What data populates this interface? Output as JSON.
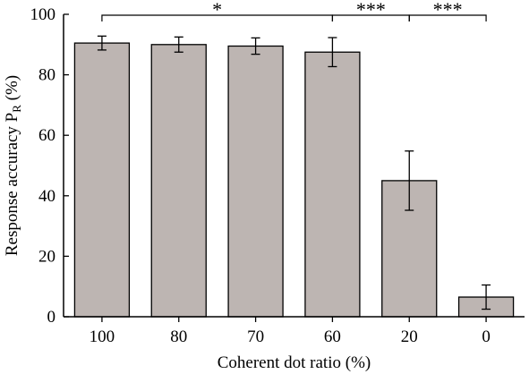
{
  "chart_data": {
    "type": "bar",
    "categories": [
      "100",
      "80",
      "70",
      "60",
      "20",
      "0"
    ],
    "values": [
      90.5,
      90,
      89.5,
      87.5,
      45,
      6.5
    ],
    "errors": [
      2.3,
      2.5,
      2.7,
      4.8,
      9.8,
      4.0
    ],
    "xlabel": "Coherent dot ratio (%)",
    "ylabel": {
      "main": "Response accuracy P",
      "sub": "R",
      "unit": " (%)"
    },
    "yticks": [
      0,
      20,
      40,
      60,
      80,
      100
    ],
    "ylim": [
      0,
      100
    ],
    "grid": false,
    "significance": [
      {
        "from": 0,
        "to": 3,
        "label": "*"
      },
      {
        "from": 3,
        "to": 4,
        "label": "***"
      },
      {
        "from": 4,
        "to": 5,
        "label": "***"
      }
    ],
    "colors": {
      "bar_fill": "#bdb5b2",
      "bar_stroke": "#000000"
    }
  }
}
